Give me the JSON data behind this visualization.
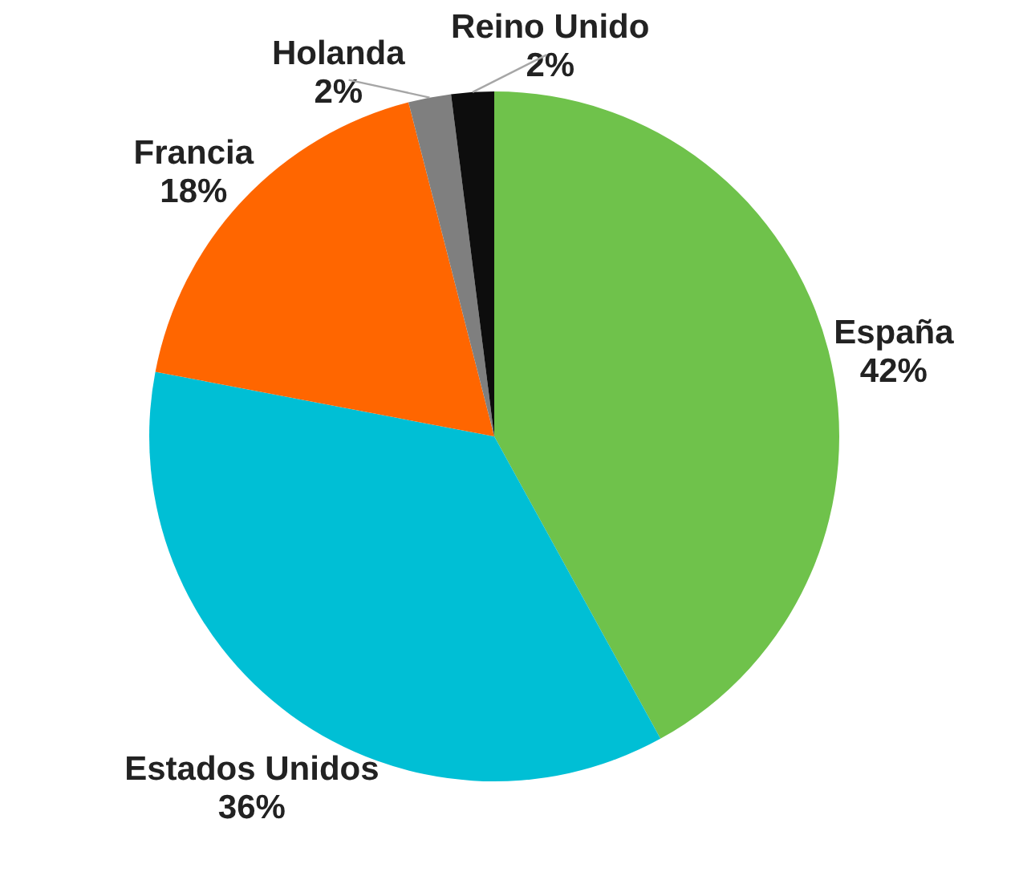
{
  "chart_data": {
    "type": "pie",
    "categories": [
      "España",
      "Estados Unidos",
      "Francia",
      "Holanda",
      "Reino Unido"
    ],
    "values": [
      42,
      36,
      18,
      2,
      2
    ],
    "colors": [
      "#6fc24b",
      "#00bfd5",
      "#ff6600",
      "#7f7f7f",
      "#0d0d0d"
    ],
    "value_labels": [
      "42%",
      "36%",
      "18%",
      "2%",
      "2%"
    ]
  }
}
